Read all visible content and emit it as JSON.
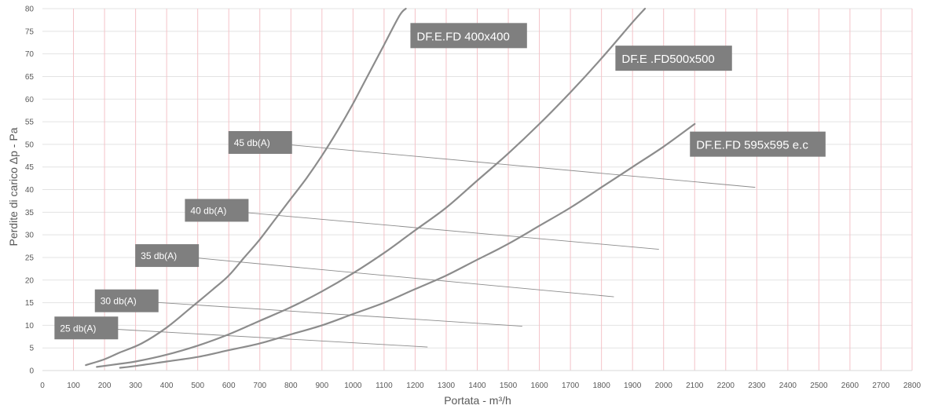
{
  "chart_data": {
    "type": "line",
    "xlabel": "Portata - m³/h",
    "ylabel": "Perdite di carico Δp  - Pa",
    "xlim": [
      0,
      2800
    ],
    "ylim": [
      0,
      80
    ],
    "x_ticks": [
      "0",
      "100",
      "200",
      "300",
      "400",
      "500",
      "600",
      "700",
      "800",
      "900",
      "1000",
      "1100",
      "1200",
      "1300",
      "1400",
      "1500",
      "1600",
      "1700",
      "1800",
      "1900",
      "2000",
      "2100",
      "2200",
      "2300",
      "2400",
      "2500",
      "2600",
      "2700",
      "2800"
    ],
    "y_ticks": [
      "0",
      "5",
      "10",
      "15",
      "20",
      "25",
      "30",
      "35",
      "40",
      "45",
      "50",
      "55",
      "60",
      "65",
      "70",
      "75",
      "80"
    ],
    "grid": {
      "vertical_color": "#f4c3c8",
      "horizontal_color": "#e3e3e3"
    },
    "series": [
      {
        "name": "DF.E.FD 400x400",
        "color": "#8c8c8c",
        "points": [
          [
            140,
            1.2
          ],
          [
            200,
            2.5
          ],
          [
            250,
            4
          ],
          [
            320,
            6
          ],
          [
            400,
            9.5
          ],
          [
            480,
            14
          ],
          [
            550,
            18
          ],
          [
            600,
            21
          ],
          [
            650,
            25
          ],
          [
            700,
            29
          ],
          [
            750,
            33.5
          ],
          [
            800,
            38
          ],
          [
            850,
            42.5
          ],
          [
            900,
            47.5
          ],
          [
            950,
            53
          ],
          [
            1000,
            59
          ],
          [
            1050,
            65.5
          ],
          [
            1100,
            72
          ],
          [
            1150,
            78.5
          ],
          [
            1170,
            80
          ]
        ]
      },
      {
        "name": "DF.E .FD500x500",
        "color": "#8c8c8c",
        "points": [
          [
            175,
            0.8
          ],
          [
            250,
            1.5
          ],
          [
            300,
            2
          ],
          [
            400,
            3.5
          ],
          [
            500,
            5.5
          ],
          [
            600,
            8
          ],
          [
            700,
            11
          ],
          [
            800,
            14
          ],
          [
            900,
            17.5
          ],
          [
            1000,
            21.5
          ],
          [
            1100,
            26
          ],
          [
            1200,
            31
          ],
          [
            1300,
            36
          ],
          [
            1400,
            42
          ],
          [
            1500,
            48
          ],
          [
            1600,
            54.5
          ],
          [
            1700,
            61.5
          ],
          [
            1800,
            69
          ],
          [
            1900,
            77
          ],
          [
            1940,
            80
          ]
        ]
      },
      {
        "name": "DF.E.FD 595x595 e.c",
        "color": "#8c8c8c",
        "points": [
          [
            250,
            0.6
          ],
          [
            300,
            1
          ],
          [
            400,
            2
          ],
          [
            500,
            3
          ],
          [
            600,
            4.5
          ],
          [
            700,
            6
          ],
          [
            800,
            8
          ],
          [
            900,
            10
          ],
          [
            1000,
            12.5
          ],
          [
            1100,
            15
          ],
          [
            1200,
            18
          ],
          [
            1300,
            21
          ],
          [
            1400,
            24.5
          ],
          [
            1500,
            28
          ],
          [
            1600,
            32
          ],
          [
            1700,
            36
          ],
          [
            1800,
            40.5
          ],
          [
            1900,
            45
          ],
          [
            2000,
            49.5
          ],
          [
            2100,
            54.5
          ]
        ]
      }
    ],
    "noise_lines": [
      {
        "label": "25 db(A)",
        "from": [
          140,
          9.5
        ],
        "to": [
          1240,
          5.2
        ]
      },
      {
        "label": "30 db(A)",
        "from": [
          270,
          15.5
        ],
        "to": [
          1545,
          9.8
        ]
      },
      {
        "label": "35 db(A)",
        "from": [
          400,
          25.5
        ],
        "to": [
          1840,
          16.3
        ]
      },
      {
        "label": "40 db(A)",
        "from": [
          560,
          35.5
        ],
        "to": [
          1985,
          26.8
        ]
      },
      {
        "label": "45 db(A)",
        "from": [
          700,
          50.5
        ],
        "to": [
          2295,
          40.5
        ]
      }
    ],
    "series_labels": [
      {
        "text": "DF.E.FD 400x400",
        "x": 1200,
        "y": 73
      },
      {
        "text": "DF.E .FD500x500",
        "x": 1860,
        "y": 68
      },
      {
        "text": "DF.E.FD 595x595 e.c",
        "x": 2100,
        "y": 49
      }
    ]
  }
}
